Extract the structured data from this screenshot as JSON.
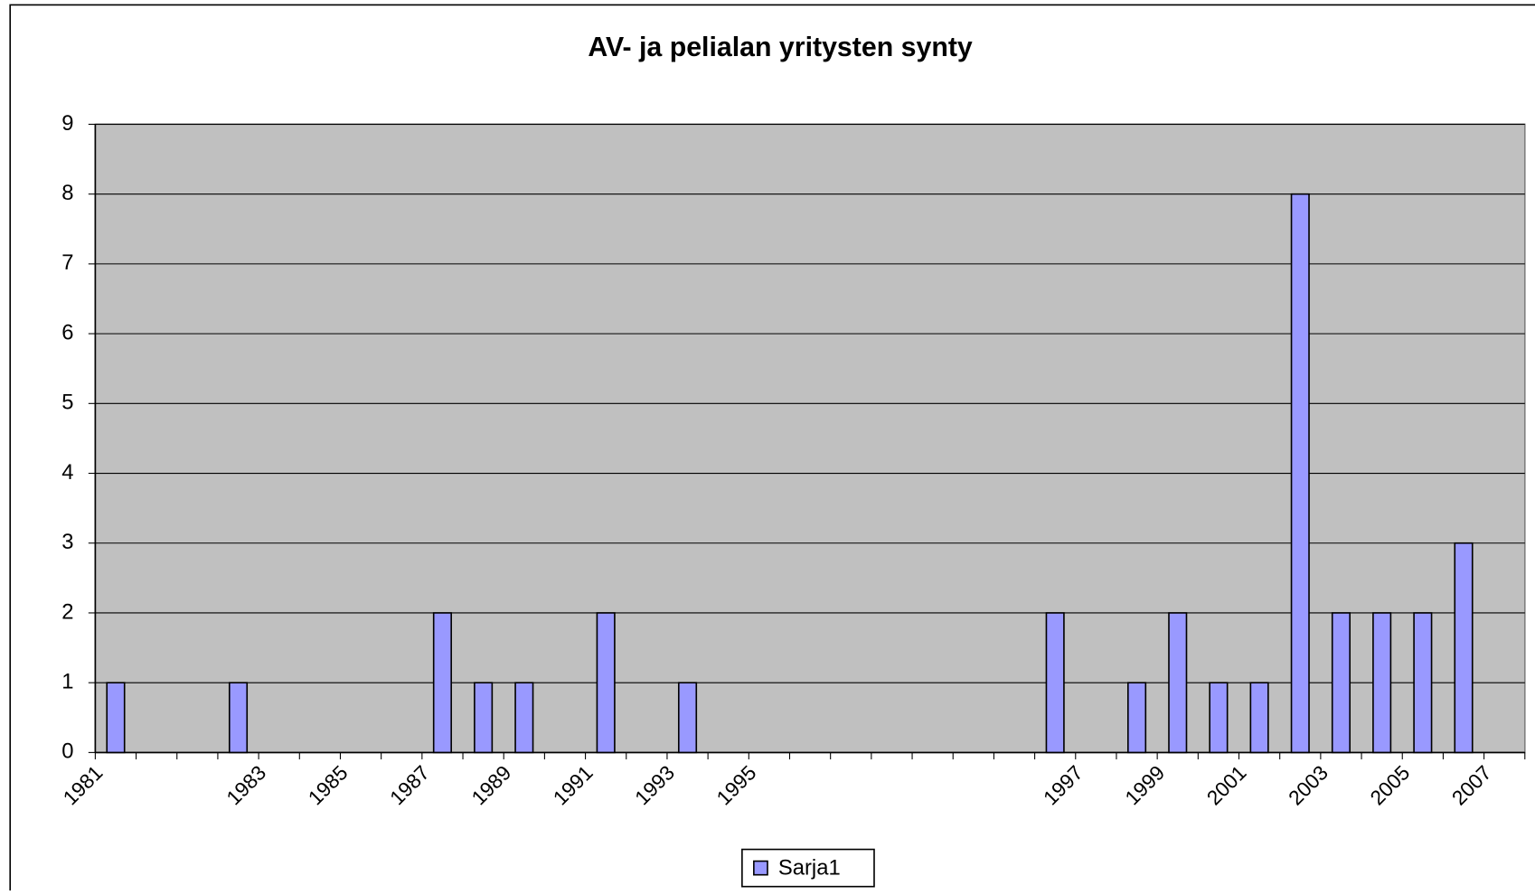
{
  "chart_data": {
    "type": "bar",
    "title": "AV- ja pelialan yritysten synty",
    "categories": [
      "1981",
      null,
      null,
      null,
      "1983",
      null,
      "1985",
      null,
      "1987",
      null,
      "1989",
      null,
      "1991",
      null,
      "1993",
      null,
      "1995",
      null,
      null,
      null,
      null,
      null,
      null,
      null,
      "1997",
      null,
      "1999",
      null,
      "2001",
      null,
      "2003",
      null,
      "2005",
      null,
      "2007"
    ],
    "series": [
      {
        "name": "Sarja1",
        "color": "#9999ff",
        "values": [
          1,
          0,
          0,
          1,
          0,
          0,
          0,
          0,
          2,
          1,
          1,
          0,
          2,
          0,
          1,
          0,
          0,
          0,
          0,
          0,
          0,
          0,
          0,
          2,
          0,
          1,
          2,
          1,
          1,
          8,
          2,
          2,
          2,
          3,
          0
        ]
      }
    ],
    "ylim": [
      0,
      9
    ],
    "yticks": [
      0,
      1,
      2,
      3,
      4,
      5,
      6,
      7,
      8,
      9
    ],
    "grid": true,
    "legend": "bottom"
  }
}
